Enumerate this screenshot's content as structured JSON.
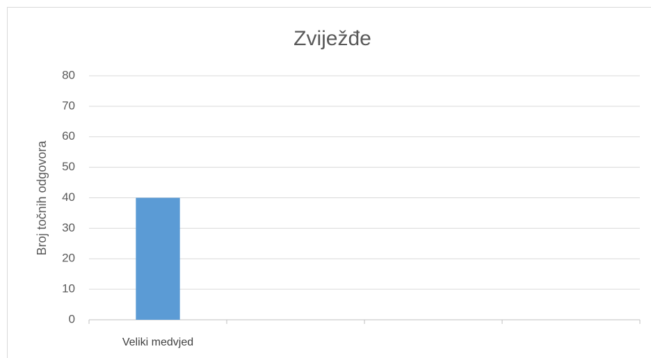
{
  "chart_data": {
    "type": "bar",
    "title": "Zviježđe",
    "y_axis_label": "Broj točnih odgovora",
    "categories": [
      "Veliki medvjed",
      null,
      null,
      null
    ],
    "values": [
      40,
      null,
      null,
      null
    ],
    "color": "#5b9bd5",
    "ylim": [
      0,
      80
    ],
    "yticks": [
      0,
      10,
      20,
      30,
      40,
      50,
      60,
      70,
      80
    ],
    "grid": true
  }
}
